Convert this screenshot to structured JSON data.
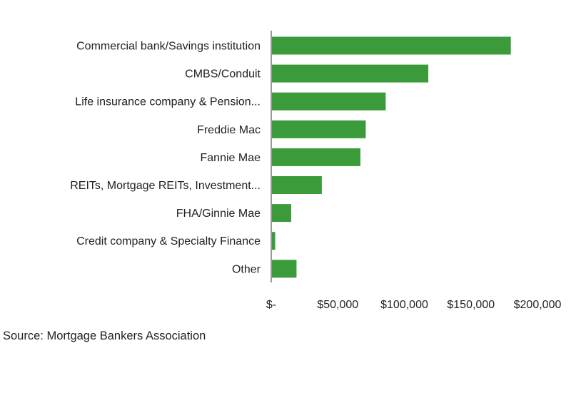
{
  "chart_data": {
    "type": "bar",
    "orientation": "horizontal",
    "categories": [
      "Commercial bank/Savings institution",
      "CMBS/Conduit",
      "Life insurance company & Pension...",
      "Freddie Mac",
      "Fannie Mae",
      "REITs, Mortgage REITs, Investment...",
      "FHA/Ginnie Mae",
      "Credit company & Specialty Finance",
      "Other"
    ],
    "values": [
      180000,
      118000,
      86000,
      71000,
      67000,
      38000,
      15000,
      3000,
      19000
    ],
    "xlim": [
      0,
      200000
    ],
    "x_ticks": [
      0,
      50000,
      100000,
      150000,
      200000
    ],
    "x_tick_labels": [
      "$-",
      "$50,000",
      "$100,000",
      "$150,000",
      "$200,000"
    ],
    "bar_color": "#3b9b3b",
    "grid": false,
    "legend": "none"
  },
  "source": "Source: Mortgage Bankers Association"
}
